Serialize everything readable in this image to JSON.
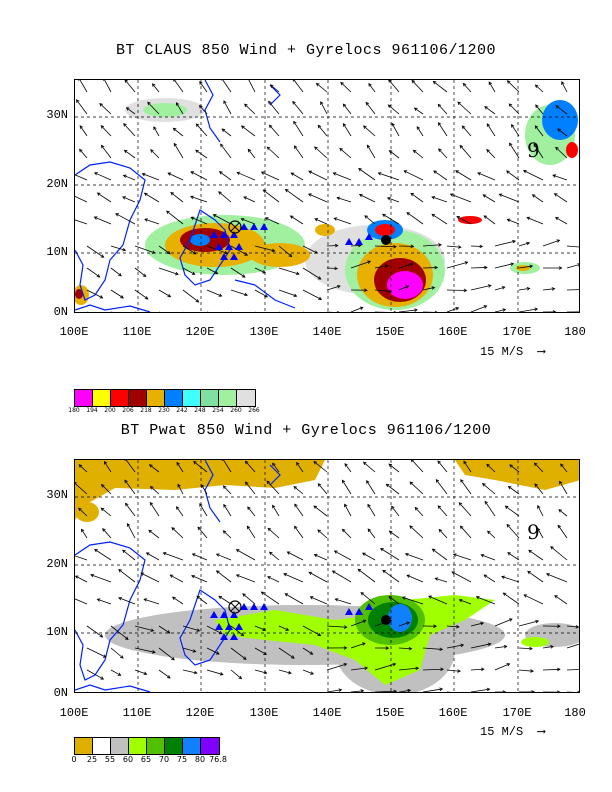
{
  "top_panel": {
    "title": "BT CLAUS 850 Wind + Gyrelocs 961106/1200",
    "lat_labels": [
      "30N",
      "20N",
      "10N",
      "0N"
    ],
    "lon_labels": [
      "100E",
      "110E",
      "120E",
      "130E",
      "140E",
      "150E",
      "160E",
      "170E",
      "180"
    ],
    "scale_label": "15 M/S",
    "legend_colors": [
      "#ff00ff",
      "#ffff00",
      "#ff0000",
      "#a00000",
      "#e8b000",
      "#0080ff",
      "#40ffff",
      "#80e0a0",
      "#a0f0a0",
      "#e0e0e0"
    ],
    "legend_ticks": [
      "180",
      "194",
      "200",
      "206",
      "218",
      "230",
      "242",
      "248",
      "254",
      "260",
      "266"
    ],
    "annotation": "9"
  },
  "bottom_panel": {
    "title": "BT Pwat 850 Wind + Gyrelocs 961106/1200",
    "lat_labels": [
      "30N",
      "20N",
      "10N",
      "0N"
    ],
    "lon_labels": [
      "100E",
      "110E",
      "120E",
      "130E",
      "140E",
      "150E",
      "160E",
      "170E",
      "180"
    ],
    "scale_label": "15 M/S",
    "legend_colors": [
      "#e0b000",
      "#ffffff",
      "#c0c0c0",
      "#a0ff00",
      "#50c000",
      "#008000",
      "#1080ff",
      "#8000ff"
    ],
    "legend_ticks": [
      "0",
      "25",
      "55",
      "60",
      "65",
      "70",
      "75",
      "80",
      "76.8"
    ],
    "annotation": "9"
  }
}
